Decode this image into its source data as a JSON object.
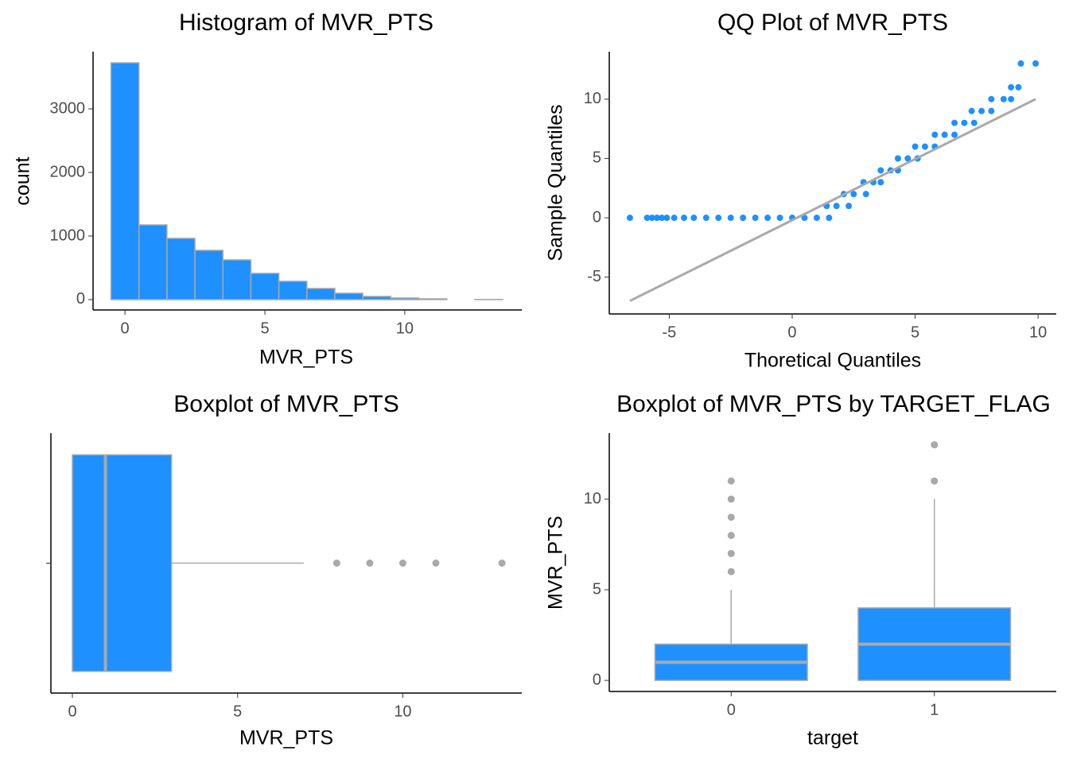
{
  "chart_data": [
    {
      "type": "histogram",
      "title": "Histogram of MVR_PTS",
      "x_label": "MVR_PTS",
      "y_label": "count",
      "bins": [
        -0.5,
        0.5,
        1.5,
        2.5,
        3.5,
        4.5,
        5.5,
        6.5,
        7.5,
        8.5,
        9.5,
        10.5,
        11.5,
        12.5,
        13.5
      ],
      "values": [
        3725,
        1175,
        963,
        775,
        625,
        413,
        288,
        175,
        100,
        50,
        25,
        13,
        0,
        2
      ],
      "color": "#1e90ff",
      "edge_color": "#a9a9a9",
      "xlim": [
        -1.14,
        14.18
      ],
      "ylim": [
        -163,
        3900
      ],
      "xticks": [
        0,
        5,
        10
      ],
      "yticks": [
        0,
        1000,
        2000,
        3000
      ]
    },
    {
      "type": "scatter",
      "title": "QQ Plot of MVR_PTS",
      "x_label": "Thoretical Quantiles",
      "y_label": "Sample Quantiles",
      "x": [
        -6.6,
        -5.9,
        -5.7,
        -5.5,
        -5.3,
        -5.1,
        -4.8,
        -4.4,
        -4.0,
        -3.5,
        -3.0,
        -2.5,
        -2.0,
        -1.5,
        -1.0,
        -0.5,
        0,
        0.5,
        1.0,
        1.5,
        1.4,
        1.8,
        2.3,
        2.1,
        2.5,
        3.0,
        2.9,
        3.3,
        3.6,
        3.6,
        4.0,
        4.3,
        4.3,
        4.7,
        5.1,
        5.0,
        5.4,
        5.8,
        5.8,
        6.2,
        6.6,
        6.6,
        7.0,
        7.4,
        7.3,
        7.7,
        8.1,
        8.1,
        8.6,
        8.9,
        8.9,
        9.2,
        9.3,
        9.9
      ],
      "y": [
        0,
        0,
        0,
        0,
        0,
        0,
        0,
        0,
        0,
        0,
        0,
        0,
        0,
        0,
        0,
        0,
        0,
        0,
        0,
        0,
        1,
        1,
        1,
        2,
        2,
        2,
        3,
        3,
        3,
        4,
        4,
        4,
        5,
        5,
        5,
        6,
        6,
        6,
        7,
        7,
        7,
        8,
        8,
        8,
        9,
        9,
        9,
        10,
        10,
        10,
        11,
        11,
        13,
        13
      ],
      "color": "#1e90ff",
      "line": {
        "x": [
          -6.6,
          9.9
        ],
        "y": [
          -7.0,
          10.0
        ],
        "color": "#a9a9a9"
      },
      "xlim": [
        -7.44,
        10.74
      ],
      "ylim": [
        -8.1,
        14.0
      ],
      "xticks": [
        -5,
        0,
        5,
        10
      ],
      "yticks": [
        -5,
        0,
        5,
        10
      ]
    },
    {
      "type": "boxplot",
      "orientation": "horizontal",
      "title": "Boxplot of MVR_PTS",
      "x_label": "MVR_PTS",
      "categories": [
        null
      ],
      "boxes": [
        {
          "min": 0,
          "q1": 0,
          "median": 1,
          "q3": 3,
          "max": 7,
          "outliers": [
            8,
            9,
            10,
            11,
            13
          ]
        }
      ],
      "color": "#1e90ff",
      "edge_color": "#a9a9a9",
      "xlim": [
        -0.65,
        13.6
      ],
      "xticks": [
        0,
        5,
        10
      ]
    },
    {
      "type": "boxplot",
      "orientation": "vertical",
      "title": "Boxplot of MVR_PTS by TARGET_FLAG",
      "x_label": "target",
      "y_label": "MVR_PTS",
      "categories": [
        "0",
        "1"
      ],
      "boxes": [
        {
          "min": 0,
          "q1": 0,
          "median": 1,
          "q3": 2,
          "max": 5,
          "outliers": [
            6,
            7,
            8,
            9,
            10,
            11
          ]
        },
        {
          "min": 0,
          "q1": 0,
          "median": 2,
          "q3": 4,
          "max": 10,
          "outliers": [
            11,
            13
          ]
        }
      ],
      "color": "#1e90ff",
      "edge_color": "#a9a9a9",
      "ylim": [
        -0.61,
        13.64
      ],
      "yticks": [
        0,
        5,
        10
      ]
    }
  ]
}
